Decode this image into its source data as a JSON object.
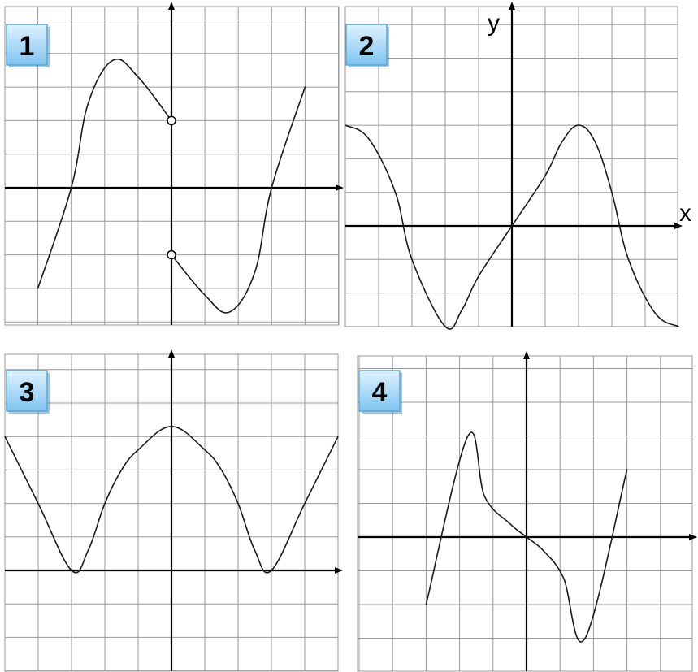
{
  "chart_data": [
    {
      "type": "line",
      "badge": "1",
      "xlabel": "",
      "ylabel": "",
      "xlim": [
        -5,
        5
      ],
      "ylim": [
        -4,
        5.5
      ],
      "grid": true,
      "series": [
        {
          "points": [
            [
              -4,
              -3
            ],
            [
              -3,
              0
            ],
            [
              -2.5,
              2.5
            ],
            [
              -1.75,
              3.8
            ],
            [
              -1,
              3.3
            ],
            [
              0,
              2
            ]
          ]
        },
        {
          "points": [
            [
              0,
              -2
            ],
            [
              1,
              -3.2
            ],
            [
              1.75,
              -3.7
            ],
            [
              2.5,
              -2.5
            ],
            [
              3,
              0
            ],
            [
              4,
              3
            ]
          ]
        }
      ],
      "open_points": [
        [
          0,
          2
        ],
        [
          0,
          -2
        ]
      ]
    },
    {
      "type": "line",
      "badge": "2",
      "xlabel": "x",
      "ylabel": "y",
      "xlim": [
        -5,
        5
      ],
      "ylim": [
        -3,
        6.5
      ],
      "grid": true,
      "series": [
        {
          "points": [
            [
              -5,
              3
            ],
            [
              -4.3,
              2.6
            ],
            [
              -3.5,
              1
            ],
            [
              -3,
              -1
            ],
            [
              -2,
              -3
            ],
            [
              -1.5,
              -2.5
            ],
            [
              -1,
              -1.5
            ],
            [
              0,
              0
            ],
            [
              1,
              1.5
            ],
            [
              1.5,
              2.5
            ],
            [
              2,
              3
            ],
            [
              2.5,
              2.5
            ],
            [
              3,
              1
            ],
            [
              3.5,
              -1
            ],
            [
              4.3,
              -2.6
            ],
            [
              5,
              -3
            ]
          ]
        }
      ]
    },
    {
      "type": "line",
      "badge": "3",
      "xlabel": "",
      "ylabel": "",
      "xlim": [
        -5,
        5
      ],
      "ylim": [
        -3,
        6.5
      ],
      "grid": true,
      "series": [
        {
          "points": [
            [
              -5,
              4
            ],
            [
              -4,
              2
            ],
            [
              -3,
              0
            ],
            [
              -2.5,
              0.6
            ],
            [
              -2,
              2
            ],
            [
              -1.5,
              3
            ],
            [
              -1,
              3.6
            ],
            [
              0,
              4.3
            ],
            [
              1,
              3.6
            ],
            [
              1.5,
              3
            ],
            [
              2,
              2
            ],
            [
              2.5,
              0.6
            ],
            [
              3,
              0
            ],
            [
              4,
              2
            ],
            [
              5,
              4
            ]
          ]
        }
      ]
    },
    {
      "type": "line",
      "badge": "4",
      "xlabel": "",
      "ylabel": "",
      "xlim": [
        -5,
        5
      ],
      "ylim": [
        -4,
        5.5
      ],
      "grid": true,
      "series": [
        {
          "points": [
            [
              -3,
              -2
            ],
            [
              -1.75,
              3
            ],
            [
              -1.25,
              1.2
            ],
            [
              -0.5,
              0.4
            ],
            [
              0,
              0
            ],
            [
              0.5,
              -0.4
            ],
            [
              1.1,
              -1.2
            ],
            [
              1.75,
              -3
            ],
            [
              3,
              2
            ]
          ]
        }
      ]
    }
  ]
}
